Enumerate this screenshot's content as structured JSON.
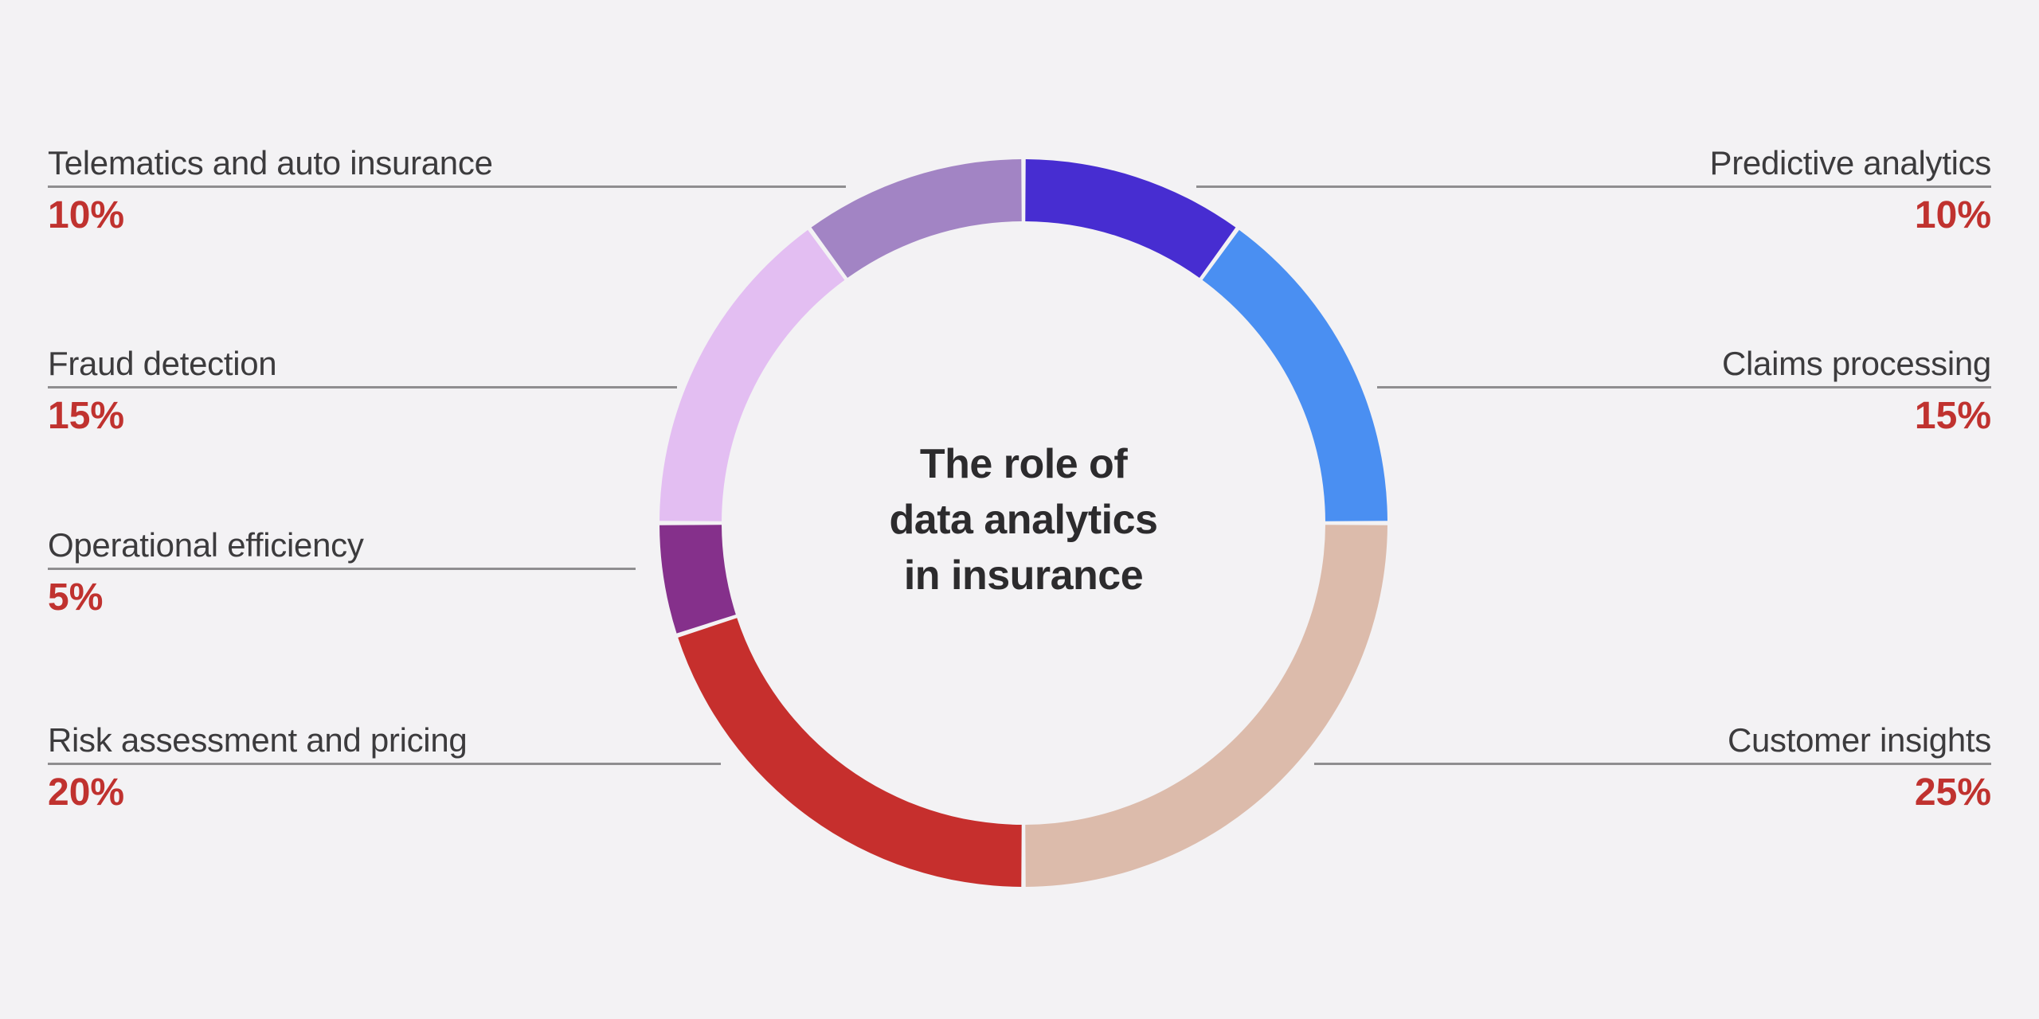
{
  "background": "#f3f2f4",
  "title": {
    "text": "The role of data analytics in insurance",
    "lines": [
      "The role of",
      "data analytics",
      "in insurance"
    ],
    "color": "#2c2b2d"
  },
  "style": {
    "percent_color": "#c0322f",
    "label_color": "#3c3b3d",
    "connector_line_color": "#8f8e90"
  },
  "chart_data": {
    "type": "pie",
    "subtype": "donut",
    "title": "The role of data analytics in insurance",
    "start_angle_deg": 0,
    "direction": "clockwise",
    "hole_ratio": 0.83,
    "legend_position": "labels-around-chart",
    "segments": [
      {
        "id": "predictive-analytics",
        "label": "Predictive analytics",
        "value": 10,
        "pct_label": "10%",
        "color": "#472dd1",
        "side": "right"
      },
      {
        "id": "claims-processing",
        "label": "Claims processing",
        "value": 15,
        "pct_label": "15%",
        "color": "#4a8ff2",
        "side": "right"
      },
      {
        "id": "customer-insights",
        "label": "Customer insights",
        "value": 25,
        "pct_label": "25%",
        "color": "#dcbbab",
        "side": "right"
      },
      {
        "id": "risk-assessment-pricing",
        "label": "Risk assessment and pricing",
        "value": 20,
        "pct_label": "20%",
        "color": "#c62f2d",
        "side": "left"
      },
      {
        "id": "operational-efficiency",
        "label": "Operational efficiency",
        "value": 5,
        "pct_label": "5%",
        "color": "#85308b",
        "side": "left"
      },
      {
        "id": "fraud-detection",
        "label": "Fraud detection",
        "value": 15,
        "pct_label": "15%",
        "color": "#e3bef2",
        "side": "left"
      },
      {
        "id": "telematics-auto-insurance",
        "label": "Telematics and auto insurance",
        "value": 10,
        "pct_label": "10%",
        "color": "#a284c4",
        "side": "left"
      }
    ]
  }
}
